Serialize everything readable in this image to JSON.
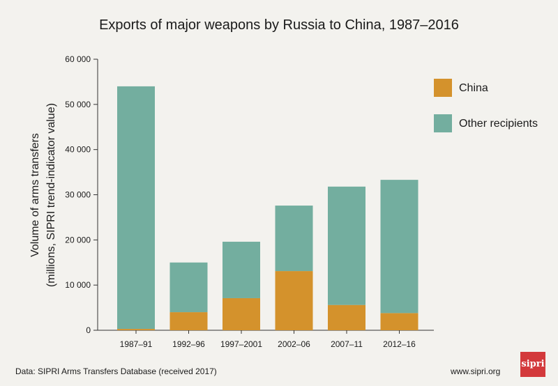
{
  "chart_data": {
    "type": "bar",
    "stacked": true,
    "title": "Exports of major weapons by Russia to China, 1987–2016",
    "ylabel_line1": "Volume of arms transfers",
    "ylabel_line2": "(millions, SIPRI trend-indicator value)",
    "categories": [
      "1987–91",
      "1992–96",
      "1997–2001",
      "2002–06",
      "2007–11",
      "2012–16"
    ],
    "series": [
      {
        "name": "China",
        "color": "#d4922c",
        "values": [
          300,
          4000,
          7100,
          13100,
          5600,
          3800
        ]
      },
      {
        "name": "Other recipients",
        "color": "#73ae9f",
        "values": [
          53700,
          11000,
          12500,
          14500,
          26200,
          29500
        ]
      }
    ],
    "ylim": [
      0,
      60000
    ],
    "yticks": [
      0,
      10000,
      20000,
      30000,
      40000,
      50000,
      60000
    ],
    "ytick_labels": [
      "0",
      "10 000",
      "20 000",
      "30 000",
      "40 000",
      "50 000",
      "60 000"
    ],
    "legend_position": "top-right",
    "grid": false
  },
  "footer": {
    "source": "Data: SIPRI Arms Transfers Database (received 2017)",
    "url": "www.sipri.org",
    "logo_text": "sipri"
  }
}
